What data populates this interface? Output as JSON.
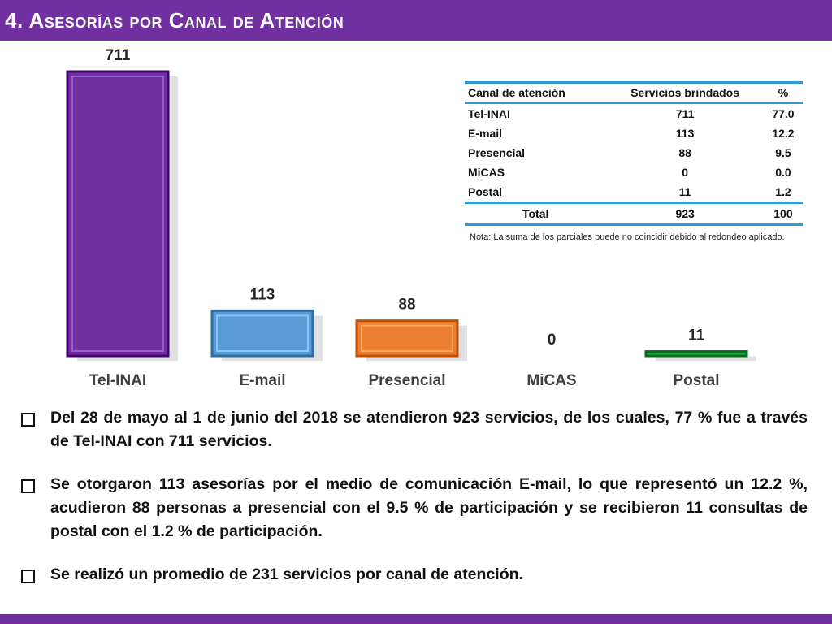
{
  "title": "4. Asesorías por Canal de Atención",
  "colors": {
    "brand": "#7030a0",
    "table_rule": "#2e9ad6"
  },
  "chart_data": {
    "type": "bar",
    "categories": [
      "Tel-INAI",
      "E-mail",
      "Presencial",
      "MiCAS",
      "Postal"
    ],
    "values": [
      711,
      113,
      88,
      0,
      11
    ],
    "data_labels": [
      "711",
      "113",
      "88",
      "0",
      "11"
    ],
    "colors": [
      "#7030a0",
      "#5b9bd5",
      "#ed7d31",
      "#9e9e9e",
      "#2e9e4a"
    ],
    "title": "",
    "xlabel": "",
    "ylabel": "",
    "ylim": [
      0,
      711
    ],
    "grid": false,
    "legend": "none"
  },
  "table": {
    "headers": [
      "Canal de atención",
      "Servicios brindados",
      "%"
    ],
    "rows": [
      [
        "Tel-INAI",
        "711",
        "77.0"
      ],
      [
        "E-mail",
        "113",
        "12.2"
      ],
      [
        "Presencial",
        "88",
        "9.5"
      ],
      [
        "MiCAS",
        "0",
        "0.0"
      ],
      [
        "Postal",
        "11",
        "1.2"
      ]
    ],
    "total": [
      "Total",
      "923",
      "100"
    ]
  },
  "note": "Nota: La suma de los parciales puede no coincidir debido al redondeo aplicado.",
  "bullets": [
    "Del 28 de mayo al 1 de junio del 2018 se atendieron 923 servicios, de los cuales, 77 % fue a través de Tel-INAI con 711 servicios.",
    "Se otorgaron 113 asesorías por el medio de comunicación E-mail, lo que representó un 12.2 %, acudieron 88 personas a presencial con el 9.5 % de participación y se recibieron 11 consultas de postal con el 1.2 % de participación.",
    "Se realizó un promedio de 231 servicios por canal de atención."
  ]
}
